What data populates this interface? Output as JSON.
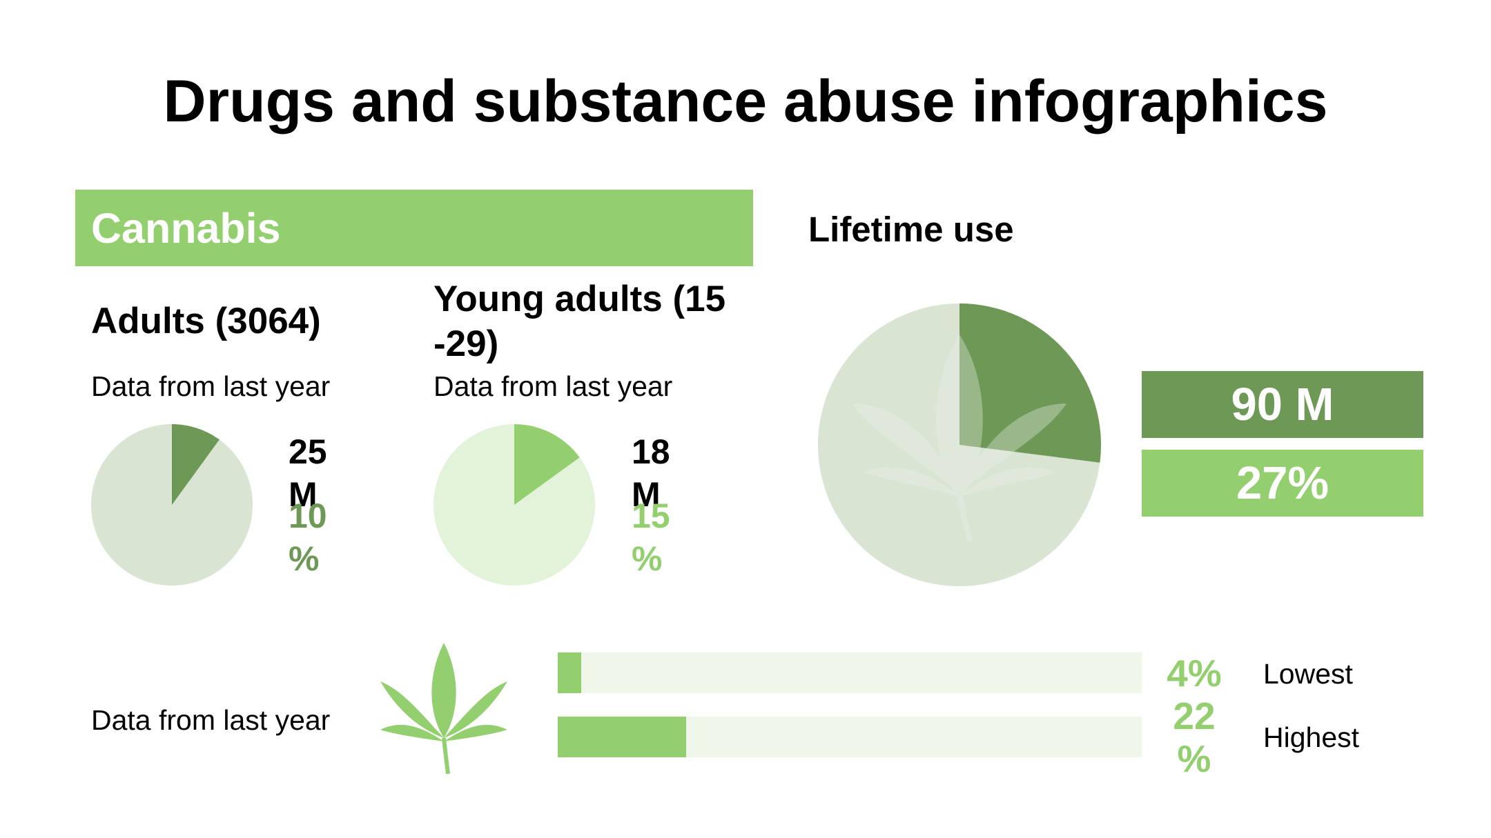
{
  "title": "Drugs and substance abuse infographics",
  "banner": {
    "label": "Cannabis"
  },
  "lifetime": {
    "heading": "Lifetime use",
    "count": "90 M",
    "percent": "27%"
  },
  "colors": {
    "green_light": "#94cf6f",
    "green_dark": "#6d9855",
    "pie_bg_gray": "#d9e4d3",
    "pie_bg_pale": "#e3f3da",
    "bar_track": "#eff7ea",
    "leaf_light": "#ecf2e8"
  },
  "adults": {
    "heading": "Adults (3064)",
    "note": "Data from last year",
    "count": "25 M",
    "percent": "10 %"
  },
  "young": {
    "heading": "Young adults (15 -29)",
    "note": "Data from last year",
    "count": "18 M",
    "percent": "15 %"
  },
  "bottom": {
    "note": "Data from last year",
    "icon": "cannabis-leaf-icon",
    "rows": [
      {
        "percent": "4%",
        "label": "Lowest"
      },
      {
        "percent": "22 %",
        "label": "Highest"
      }
    ]
  },
  "chart_data": [
    {
      "type": "pie",
      "title": "Adults (3064)",
      "labels": [
        "25 M",
        ""
      ],
      "values": [
        10,
        90
      ],
      "colors": [
        "#6d9855",
        "#d9e4d3"
      ]
    },
    {
      "type": "pie",
      "title": "Young adults (15 -29)",
      "labels": [
        "18 M",
        ""
      ],
      "values": [
        15,
        85
      ],
      "colors": [
        "#94cf6f",
        "#e3f3da"
      ]
    },
    {
      "type": "pie",
      "title": "Lifetime use",
      "labels": [
        "90 M",
        ""
      ],
      "values": [
        27,
        73
      ],
      "colors": [
        "#6d9855",
        "#d9e4d3"
      ]
    },
    {
      "type": "bar",
      "orientation": "horizontal",
      "categories": [
        "Lowest",
        "Highest"
      ],
      "values": [
        4,
        22
      ],
      "xlim": [
        0,
        100
      ]
    }
  ]
}
